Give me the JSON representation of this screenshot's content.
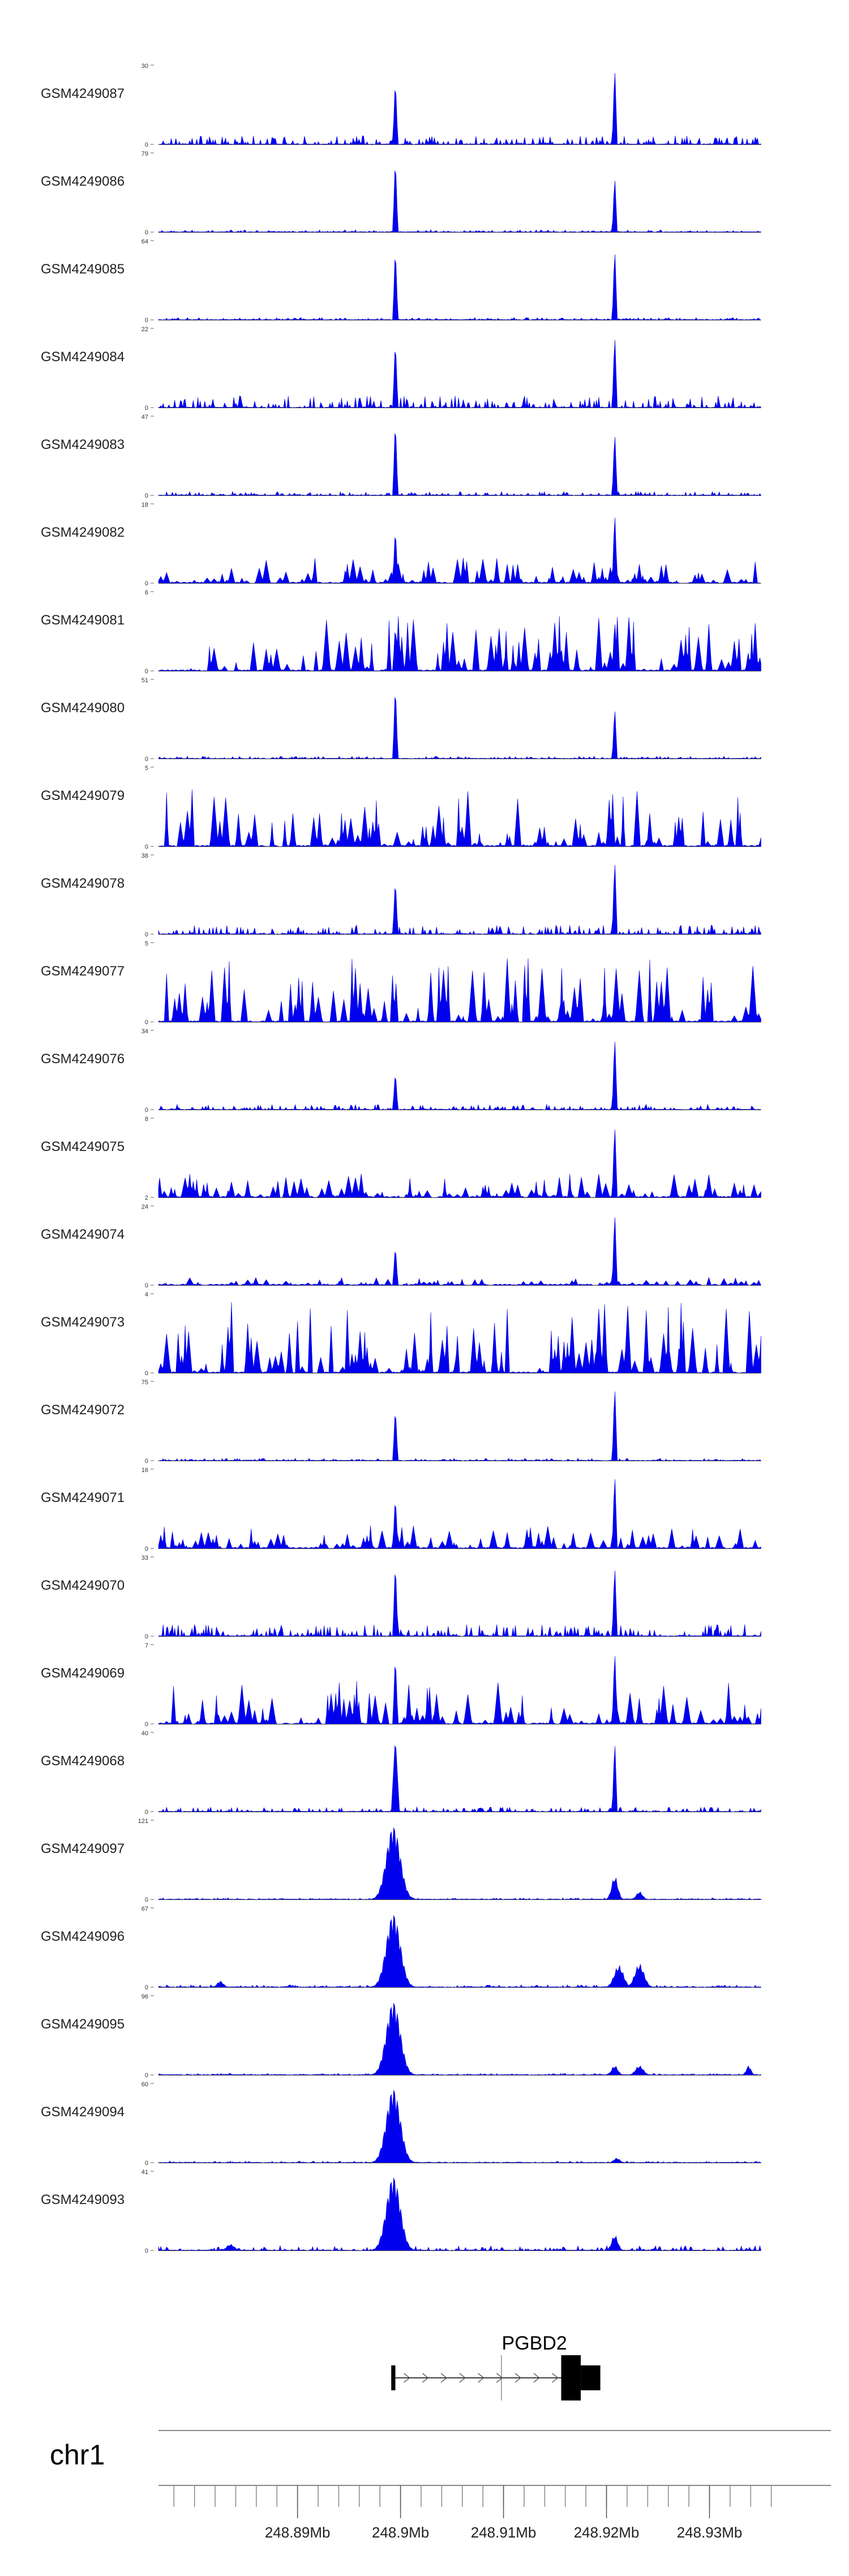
{
  "chart_data": {
    "type": "area",
    "genome": {
      "chromosome": "chr1",
      "x_range_mb": [
        248.8765,
        248.9375
      ],
      "data_range_mb": [
        248.8765,
        248.935
      ]
    },
    "axis": {
      "tick_labels": [
        "248.89Mb",
        "248.9Mb",
        "248.91Mb",
        "248.92Mb",
        "248.93Mb"
      ],
      "tick_values_mb": [
        248.89,
        248.9,
        248.91,
        248.92,
        248.93
      ],
      "minor_step_mb": 0.002
    },
    "colors": {
      "signal": "#0000ee",
      "baseline": "#555555",
      "gene": "#000000",
      "axis": "#888888"
    },
    "tracks": [
      {
        "name": "GSM4249087",
        "ymax": "30",
        "ymin": "0",
        "max": 30,
        "style": "sharp",
        "noise": 0.11,
        "peaks": [
          {
            "x": 248.8995,
            "h": 0.85,
            "w": 0.00025
          },
          {
            "x": 248.9208,
            "h": 1.0,
            "w": 0.00025
          }
        ]
      },
      {
        "name": "GSM4249086",
        "ymax": "79",
        "ymin": "0",
        "max": 79,
        "style": "sharp",
        "noise": 0.03,
        "peaks": [
          {
            "x": 248.8995,
            "h": 0.97,
            "w": 0.00025
          },
          {
            "x": 248.9208,
            "h": 0.72,
            "w": 0.00025
          }
        ]
      },
      {
        "name": "GSM4249085",
        "ymax": "64",
        "ymin": "0",
        "max": 64,
        "style": "sharp",
        "noise": 0.03,
        "peaks": [
          {
            "x": 248.8995,
            "h": 0.95,
            "w": 0.00025
          },
          {
            "x": 248.9208,
            "h": 0.92,
            "w": 0.00025
          }
        ]
      },
      {
        "name": "GSM4249084",
        "ymax": "22",
        "ymin": "0",
        "max": 22,
        "style": "sharp",
        "noise": 0.15,
        "peaks": [
          {
            "x": 248.8995,
            "h": 0.88,
            "w": 0.00025
          },
          {
            "x": 248.9208,
            "h": 0.95,
            "w": 0.00025
          }
        ]
      },
      {
        "name": "GSM4249083",
        "ymax": "47",
        "ymin": "0",
        "max": 47,
        "style": "sharp",
        "noise": 0.05,
        "peaks": [
          {
            "x": 248.8995,
            "h": 0.98,
            "w": 0.00025
          },
          {
            "x": 248.9208,
            "h": 0.82,
            "w": 0.00025
          }
        ]
      },
      {
        "name": "GSM4249082",
        "ymax": "18",
        "ymin": "0",
        "max": 18,
        "style": "triangle",
        "noise": 0.32,
        "peaks": [
          {
            "x": 248.8995,
            "h": 0.72,
            "w": 0.00025
          },
          {
            "x": 248.9208,
            "h": 0.92,
            "w": 0.00025
          }
        ]
      },
      {
        "name": "GSM4249081",
        "ymax": "6",
        "ymin": "0",
        "max": 6,
        "style": "triangle",
        "noise": 0.7,
        "peaks": [
          {
            "x": 248.8995,
            "h": 0.6,
            "w": 0.00025
          },
          {
            "x": 248.9208,
            "h": 0.65,
            "w": 0.00025
          }
        ]
      },
      {
        "name": "GSM4249080",
        "ymax": "51",
        "ymin": "0",
        "max": 51,
        "style": "sharp",
        "noise": 0.03,
        "peaks": [
          {
            "x": 248.8995,
            "h": 0.97,
            "w": 0.00025
          },
          {
            "x": 248.9208,
            "h": 0.66,
            "w": 0.00025
          }
        ]
      },
      {
        "name": "GSM4249079",
        "ymax": "5",
        "ymin": "0",
        "max": 5,
        "style": "triangle",
        "noise": 0.72,
        "peaks": []
      },
      {
        "name": "GSM4249078",
        "ymax": "38",
        "ymin": "0",
        "max": 38,
        "style": "sharp",
        "noise": 0.12,
        "peaks": [
          {
            "x": 248.8995,
            "h": 0.72,
            "w": 0.00025
          },
          {
            "x": 248.9208,
            "h": 0.97,
            "w": 0.00025
          }
        ]
      },
      {
        "name": "GSM4249077",
        "ymax": "5",
        "ymin": "0",
        "max": 5,
        "style": "triangle",
        "noise": 0.82,
        "peaks": []
      },
      {
        "name": "GSM4249076",
        "ymax": "34",
        "ymin": "0",
        "max": 34,
        "style": "sharp",
        "noise": 0.07,
        "peaks": [
          {
            "x": 248.8995,
            "h": 0.5,
            "w": 0.00025
          },
          {
            "x": 248.9208,
            "h": 0.95,
            "w": 0.00025
          }
        ]
      },
      {
        "name": "GSM4249075",
        "ymax": "8",
        "ymin": "2",
        "max": 8,
        "style": "triangle",
        "noise": 0.3,
        "peaks": [
          {
            "x": 248.9208,
            "h": 0.95,
            "w": 0.00025
          }
        ]
      },
      {
        "name": "GSM4249074",
        "ymax": "24",
        "ymin": "0",
        "max": 24,
        "style": "triangle",
        "noise": 0.1,
        "peaks": [
          {
            "x": 248.8995,
            "h": 0.52,
            "w": 0.00025
          },
          {
            "x": 248.9208,
            "h": 0.95,
            "w": 0.00025
          }
        ]
      },
      {
        "name": "GSM4249073",
        "ymax": "4",
        "ymin": "0",
        "max": 4,
        "style": "triangle",
        "noise": 0.9,
        "peaks": []
      },
      {
        "name": "GSM4249072",
        "ymax": "75",
        "ymin": "0",
        "max": 75,
        "style": "sharp",
        "noise": 0.03,
        "peaks": [
          {
            "x": 248.8995,
            "h": 0.7,
            "w": 0.00025
          },
          {
            "x": 248.9208,
            "h": 0.97,
            "w": 0.00025
          }
        ]
      },
      {
        "name": "GSM4249071",
        "ymax": "16",
        "ymin": "0",
        "max": 16,
        "style": "triangle",
        "noise": 0.3,
        "peaks": [
          {
            "x": 248.8995,
            "h": 0.68,
            "w": 0.00025
          },
          {
            "x": 248.9208,
            "h": 0.97,
            "w": 0.00025
          }
        ]
      },
      {
        "name": "GSM4249070",
        "ymax": "33",
        "ymin": "0",
        "max": 33,
        "style": "sharp",
        "noise": 0.15,
        "peaks": [
          {
            "x": 248.8995,
            "h": 0.97,
            "w": 0.00025
          },
          {
            "x": 248.9208,
            "h": 0.92,
            "w": 0.00025
          }
        ]
      },
      {
        "name": "GSM4249069",
        "ymax": "7",
        "ymin": "0",
        "max": 7,
        "style": "triangle",
        "noise": 0.55,
        "peaks": [
          {
            "x": 248.8995,
            "h": 0.9,
            "w": 0.00025
          },
          {
            "x": 248.9208,
            "h": 0.95,
            "w": 0.00025
          }
        ]
      },
      {
        "name": "GSM4249068",
        "ymax": "40",
        "ymin": "0",
        "max": 40,
        "style": "sharp",
        "noise": 0.06,
        "peaks": [
          {
            "x": 248.8995,
            "h": 0.95,
            "w": 0.0004
          },
          {
            "x": 248.9208,
            "h": 0.92,
            "w": 0.00025
          }
        ]
      },
      {
        "name": "GSM4249097",
        "ymax": "121",
        "ymin": "0",
        "max": 121,
        "style": "broad",
        "noise": 0.02,
        "peaks": [
          {
            "x": 248.8993,
            "h": 0.97,
            "w": 0.0009
          },
          {
            "x": 248.9208,
            "h": 0.3,
            "w": 0.0004
          },
          {
            "x": 248.9232,
            "h": 0.1,
            "w": 0.0004
          }
        ]
      },
      {
        "name": "GSM4249096",
        "ymax": "67",
        "ymin": "0",
        "max": 67,
        "style": "broad",
        "noise": 0.03,
        "peaks": [
          {
            "x": 248.8993,
            "h": 0.97,
            "w": 0.0009
          },
          {
            "x": 248.9212,
            "h": 0.28,
            "w": 0.0006
          },
          {
            "x": 248.9232,
            "h": 0.3,
            "w": 0.0006
          },
          {
            "x": 248.8825,
            "h": 0.08,
            "w": 0.0004
          }
        ]
      },
      {
        "name": "GSM4249095",
        "ymax": "96",
        "ymin": "0",
        "max": 96,
        "style": "broad",
        "noise": 0.02,
        "peaks": [
          {
            "x": 248.8993,
            "h": 0.97,
            "w": 0.0009
          },
          {
            "x": 248.9208,
            "h": 0.12,
            "w": 0.0004
          },
          {
            "x": 248.9232,
            "h": 0.12,
            "w": 0.0005
          },
          {
            "x": 248.9338,
            "h": 0.12,
            "w": 0.0003
          }
        ]
      },
      {
        "name": "GSM4249094",
        "ymax": "60",
        "ymin": "0",
        "max": 60,
        "style": "broad",
        "noise": 0.02,
        "peaks": [
          {
            "x": 248.8993,
            "h": 0.98,
            "w": 0.0009
          },
          {
            "x": 248.921,
            "h": 0.06,
            "w": 0.0004
          }
        ]
      },
      {
        "name": "GSM4249093",
        "ymax": "41",
        "ymin": "0",
        "max": 41,
        "style": "broad",
        "noise": 0.06,
        "peaks": [
          {
            "x": 248.8993,
            "h": 0.98,
            "w": 0.0009
          },
          {
            "x": 248.9208,
            "h": 0.2,
            "w": 0.0004
          },
          {
            "x": 248.8835,
            "h": 0.08,
            "w": 0.0005
          }
        ]
      }
    ],
    "gene": {
      "name": "PGBD2",
      "start_mb": 248.8991,
      "end_mb": 248.9194,
      "strand": "+",
      "exons_mb": [
        [
          248.8991,
          248.8995
        ],
        [
          248.9156,
          248.9175
        ],
        [
          248.9175,
          248.9194
        ]
      ],
      "cds_mb": [
        248.9156,
        248.9175
      ],
      "marker_mb": 248.9098
    }
  }
}
